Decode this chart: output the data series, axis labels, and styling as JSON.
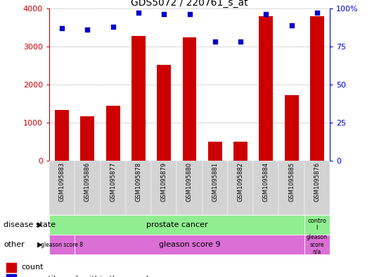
{
  "title": "GDS5072 / 220761_s_at",
  "samples": [
    "GSM1095883",
    "GSM1095886",
    "GSM1095877",
    "GSM1095878",
    "GSM1095879",
    "GSM1095880",
    "GSM1095881",
    "GSM1095882",
    "GSM1095884",
    "GSM1095885",
    "GSM1095876"
  ],
  "counts": [
    1340,
    1160,
    1450,
    3280,
    2520,
    3230,
    500,
    490,
    3800,
    1720,
    3800
  ],
  "percentiles": [
    87,
    86,
    88,
    97,
    96,
    96,
    78,
    78,
    96,
    89,
    97
  ],
  "bar_color": "#cc0000",
  "dot_color": "#0000cc",
  "ylim_left": [
    0,
    4000
  ],
  "ylim_right": [
    0,
    100
  ],
  "yticks_left": [
    0,
    1000,
    2000,
    3000,
    4000
  ],
  "yticks_right": [
    0,
    25,
    50,
    75,
    100
  ],
  "ylabel_left_color": "#cc0000",
  "ylabel_right_color": "#0000cc",
  "disease_state_label": "disease state",
  "other_label": "other",
  "disease_groups": [
    {
      "label": "prostate cancer",
      "start": 0,
      "end": 10,
      "color": "#90ee90"
    },
    {
      "label": "contro\nl",
      "start": 10,
      "end": 11,
      "color": "#90ee90"
    }
  ],
  "other_groups": [
    {
      "label": "gleason score 8",
      "start": 0,
      "end": 1,
      "color": "#da70d6"
    },
    {
      "label": "gleason score 9",
      "start": 1,
      "end": 10,
      "color": "#da70d6"
    },
    {
      "label": "gleason\nscore\nn/a",
      "start": 10,
      "end": 11,
      "color": "#da70d6"
    }
  ],
  "legend_count_color": "#cc0000",
  "legend_percentile_color": "#0000cc",
  "grid_color": "#888888",
  "bg_plot": "#ffffff",
  "bg_xtick": "#d3d3d3",
  "fig_bg": "#ffffff"
}
